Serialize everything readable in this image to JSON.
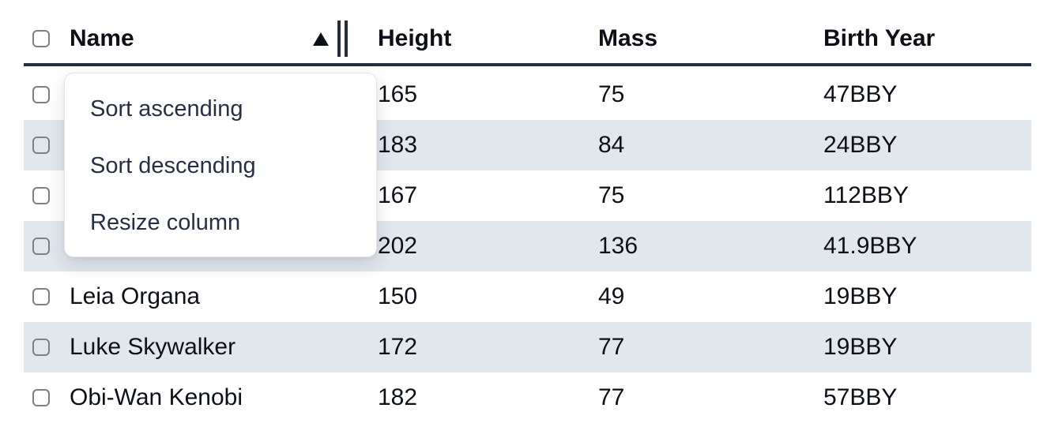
{
  "table": {
    "header": {
      "select_all_checked": false,
      "columns": [
        {
          "key": "name",
          "label": "Name"
        },
        {
          "key": "height",
          "label": "Height"
        },
        {
          "key": "mass",
          "label": "Mass"
        },
        {
          "key": "birth_year",
          "label": "Birth Year"
        }
      ],
      "sort": {
        "column": "name",
        "direction": "ascending"
      }
    },
    "rows": [
      {
        "name": "",
        "name_occluded_by_menu": true,
        "height": "165",
        "mass": "75",
        "birth_year": "47BBY",
        "selected": false,
        "striped": false
      },
      {
        "name": "",
        "name_occluded_by_menu": true,
        "height": "183",
        "mass": "84",
        "birth_year": "24BBY",
        "selected": false,
        "striped": true
      },
      {
        "name": "",
        "name_occluded_by_menu": true,
        "height": "167",
        "mass": "75",
        "birth_year": "112BBY",
        "selected": false,
        "striped": false
      },
      {
        "name": "",
        "name_occluded_by_menu": true,
        "height": "202",
        "mass": "136",
        "birth_year": "41.9BBY",
        "selected": false,
        "striped": true
      },
      {
        "name": "Leia Organa",
        "height": "150",
        "mass": "49",
        "birth_year": "19BBY",
        "selected": false,
        "striped": false
      },
      {
        "name": "Luke Skywalker",
        "height": "172",
        "mass": "77",
        "birth_year": "19BBY",
        "selected": false,
        "striped": true
      },
      {
        "name": "Obi-Wan Kenobi",
        "height": "182",
        "mass": "77",
        "birth_year": "57BBY",
        "selected": false,
        "striped": false,
        "clipped_at_bottom": true
      }
    ]
  },
  "context_menu": {
    "attached_to_column": "Name",
    "items": [
      {
        "label": "Sort ascending"
      },
      {
        "label": "Sort descending"
      },
      {
        "label": "Resize column"
      }
    ]
  },
  "colors": {
    "row_stripe": "#e2e7ee",
    "header_border": "#232d3c",
    "text": "#0d1117",
    "menu_text": "#253045",
    "checkbox_border": "#7d8187",
    "menu_border": "#e3e6eb"
  }
}
